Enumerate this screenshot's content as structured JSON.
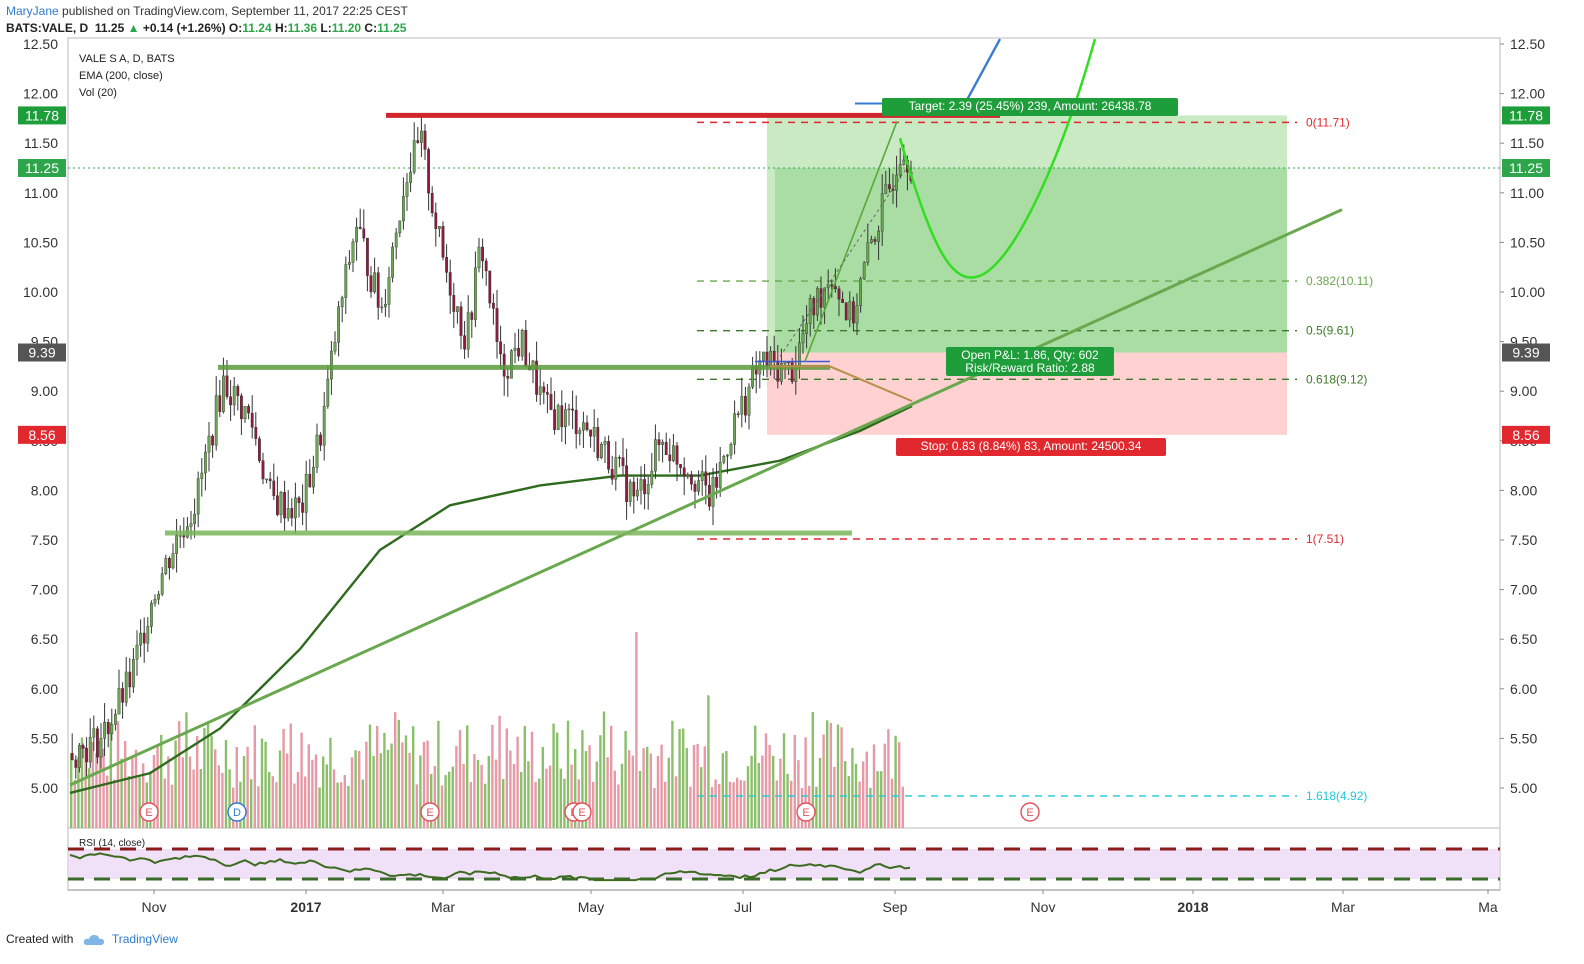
{
  "header": {
    "user": "MaryJane",
    "published_text": "published on TradingView.com, September 11, 2017 22:25 CEST",
    "symbol_line": "BATS:VALE, D",
    "last": "11.25",
    "change": "+0.14 (+1.26%)",
    "o_label": "O:",
    "o": "11.24",
    "h_label": "H:",
    "h": "11.36",
    "l_label": "L:",
    "l": "11.20",
    "c_label": "C:",
    "c": "11.25"
  },
  "legend": {
    "title": "VALE S A, D, BATS",
    "ema": "EMA (200, close)",
    "vol": "Vol (20)",
    "rsi": "RSI (14, close)"
  },
  "footer": {
    "created_with": "Created with",
    "brand": "TradingView"
  },
  "colors": {
    "up": "#6aa84f",
    "down": "#c2185b",
    "accent_green": "#7ac943",
    "target_green": "#1e9e3a",
    "stop_red": "#e0282e",
    "ema": "#2e6b1f"
  },
  "chart_data": {
    "type": "candlestick",
    "title": "VALE S A, D, BATS",
    "y_ticks": [
      "5.00",
      "5.50",
      "6.00",
      "6.50",
      "7.00",
      "7.50",
      "8.00",
      "8.50",
      "9.00",
      "9.50",
      "10.00",
      "10.50",
      "11.00",
      "11.50",
      "12.00",
      "12.50"
    ],
    "x_ticks": [
      "Nov",
      "2017",
      "Mar",
      "May",
      "Jul",
      "Sep",
      "Nov",
      "2018",
      "Mar",
      "Ma"
    ],
    "price_badges": [
      {
        "value": "11.78",
        "color": "#1e9e3a"
      },
      {
        "value": "11.25",
        "color": "#2ea54a"
      },
      {
        "value": "9.39",
        "color": "#555555"
      },
      {
        "value": "8.56",
        "color": "#e0282e"
      }
    ],
    "fib_levels": [
      {
        "label": "0(11.71)",
        "value": 11.71,
        "color": "#e0282e"
      },
      {
        "label": "0.382(10.11)",
        "value": 10.11,
        "color": "#6aa84f"
      },
      {
        "label": "0.5(9.61)",
        "value": 9.61,
        "color": "#3d7a2a"
      },
      {
        "label": "0.618(9.12)",
        "value": 9.12,
        "color": "#3d7a2a"
      },
      {
        "label": "1(7.51)",
        "value": 7.51,
        "color": "#e0282e"
      },
      {
        "label": "1.618(4.92)",
        "value": 4.92,
        "color": "#1ec8d6"
      }
    ],
    "position": {
      "entry": 9.39,
      "target": 11.78,
      "stop": 8.56,
      "target_label": "Target: 2.39 (25.45%) 239, Amount: 26438.78",
      "pnl_label": "Open P&L: 1.86, Qty: 602",
      "rr_label": "Risk/Reward Ratio: 2.88",
      "stop_label": "Stop: 0.83 (8.84%) 83, Amount: 24500.34"
    },
    "event_markers": [
      "E",
      "D",
      "E",
      "E",
      "E",
      "E"
    ],
    "rsi_levels": [
      70,
      30
    ],
    "grid": false
  }
}
